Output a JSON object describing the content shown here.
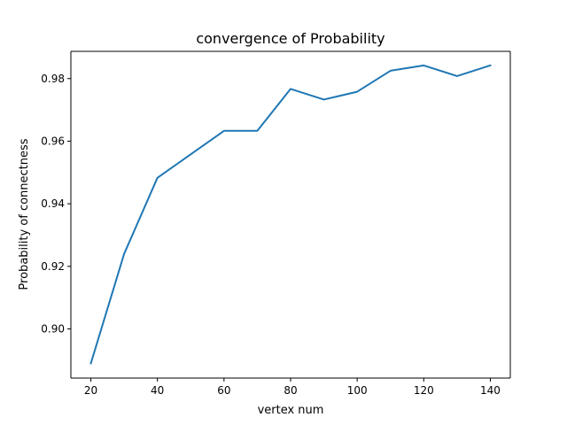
{
  "chart_data": {
    "type": "line",
    "title": "convergence of Probability",
    "xlabel": "vertex num",
    "ylabel": "Probability of connectness",
    "x": [
      20,
      30,
      40,
      50,
      60,
      70,
      80,
      90,
      100,
      110,
      120,
      130,
      140
    ],
    "series": [
      {
        "values": [
          0.889,
          0.924,
          0.9483,
          0.9558,
          0.9633,
          0.9633,
          0.9767,
          0.9733,
          0.9758,
          0.9825,
          0.9842,
          0.9808,
          0.9842
        ],
        "color": "#1f77b4"
      }
    ],
    "xlim": [
      14,
      146
    ],
    "ylim": [
      0.8843,
      0.9887
    ],
    "xticks": [
      20,
      40,
      60,
      80,
      100,
      120,
      140
    ],
    "yticks": [
      0.9,
      0.92,
      0.94,
      0.96,
      0.98
    ],
    "ytick_labels": [
      "0.90",
      "0.92",
      "0.94",
      "0.96",
      "0.98"
    ],
    "grid": false,
    "legend": "none"
  }
}
